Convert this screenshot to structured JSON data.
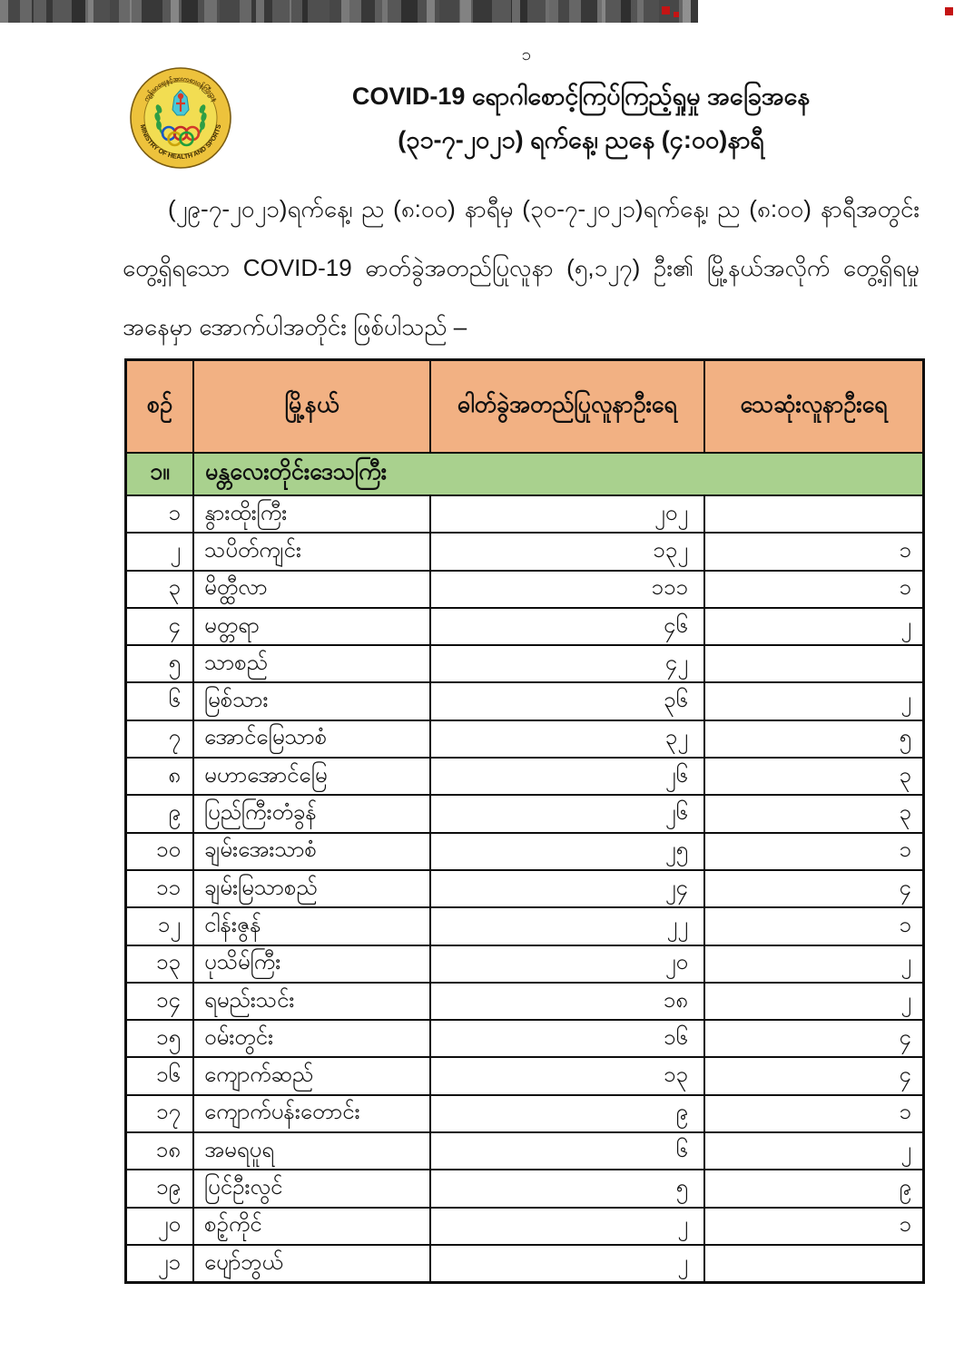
{
  "page": {
    "page_number": "၁"
  },
  "header": {
    "title_line1": "COVID-19 ရောဂါစောင့်ကြပ်ကြည့်ရှုမှု အခြေအနေ",
    "title_line2": "(၃၁-၇-၂၀၂၁) ရက်နေ့၊ ညနေ (၄:၀၀)နာရီ",
    "logo": {
      "text_top": "ကျန်းမာရေးနှင့်အားကစားဝန်ကြီးဌာန",
      "text_bottom": "MINISTRY OF HEALTH AND SPORTS"
    }
  },
  "intro": {
    "line1": "(၂၉-၇-၂၀၂၁)ရက်နေ့၊ ည (၈:၀၀) နာရီမှ (၃၀-၇-၂၀၂၁)ရက်နေ့၊ ည (၈:၀၀) နာရီအတွင်း",
    "line2": "တွေ့ရှိရသော COVID-19 ဓာတ်ခွဲအတည်ပြုလူနာ (၅,၁၂၇) ဦး၏ မြို့နယ်အလိုက် တွေ့ရှိရမှု အခြေ",
    "line3": "အနေမှာ အောက်ပါအတိုင်း ဖြစ်ပါသည် –"
  },
  "table": {
    "columns": [
      "စဉ်",
      "မြို့နယ်",
      "ဓါတ်ခွဲအတည်ပြုလူနာဦးရေ",
      "သေဆုံးလူနာဦးရေ"
    ],
    "region_row": {
      "no": "၁။",
      "name": "မန္တလေးတိုင်းဒေသကြီး"
    },
    "rows": [
      {
        "no": "၁",
        "township": "နွားထိုးကြီး",
        "confirmed": "၂၀၂",
        "deaths": ""
      },
      {
        "no": "၂",
        "township": "သပိတ်ကျင်း",
        "confirmed": "၁၃၂",
        "deaths": "၁"
      },
      {
        "no": "၃",
        "township": "မိတ္ထီလာ",
        "confirmed": "၁၁၁",
        "deaths": "၁"
      },
      {
        "no": "၄",
        "township": "မတ္တရာ",
        "confirmed": "၄၆",
        "deaths": "၂"
      },
      {
        "no": "၅",
        "township": "သာစည်",
        "confirmed": "၄၂",
        "deaths": ""
      },
      {
        "no": "၆",
        "township": "မြစ်သား",
        "confirmed": "၃၆",
        "deaths": "၂"
      },
      {
        "no": "၇",
        "township": "အောင်မြေသာစံ",
        "confirmed": "၃၂",
        "deaths": "၅"
      },
      {
        "no": "၈",
        "township": "မဟာအောင်မြေ",
        "confirmed": "၂၆",
        "deaths": "၃"
      },
      {
        "no": "၉",
        "township": "ပြည်ကြီးတံခွန်",
        "confirmed": "၂၆",
        "deaths": "၃"
      },
      {
        "no": "၁၀",
        "township": "ချမ်းအေးသာစံ",
        "confirmed": "၂၅",
        "deaths": "၁"
      },
      {
        "no": "၁၁",
        "township": "ချမ်းမြသာစည်",
        "confirmed": "၂၄",
        "deaths": "၄"
      },
      {
        "no": "၁၂",
        "township": "ငါန်းဇွန်",
        "confirmed": "၂၂",
        "deaths": "၁"
      },
      {
        "no": "၁၃",
        "township": "ပုသိမ်ကြီး",
        "confirmed": "၂၀",
        "deaths": "၂"
      },
      {
        "no": "၁၄",
        "township": "ရမည်းသင်း",
        "confirmed": "၁၈",
        "deaths": "၂"
      },
      {
        "no": "၁၅",
        "township": "ဝမ်းတွင်း",
        "confirmed": "၁၆",
        "deaths": "၄"
      },
      {
        "no": "၁၆",
        "township": "ကျောက်ဆည်",
        "confirmed": "၁၃",
        "deaths": "၄"
      },
      {
        "no": "၁၇",
        "township": "ကျောက်ပန်းတောင်း",
        "confirmed": "၉",
        "deaths": "၁"
      },
      {
        "no": "၁၈",
        "township": "အမရပူရ",
        "confirmed": "၆",
        "deaths": "၂"
      },
      {
        "no": "၁၉",
        "township": "ပြင်ဦးလွင်",
        "confirmed": "၅",
        "deaths": "၉"
      },
      {
        "no": "၂၀",
        "township": "စဉ့်ကိုင်",
        "confirmed": "၂",
        "deaths": "၁"
      },
      {
        "no": "၂၁",
        "township": "ပျော်ဘွယ်",
        "confirmed": "၂",
        "deaths": ""
      }
    ]
  },
  "colors": {
    "table_header_bg": "#F2B183",
    "region_row_bg": "#A9D18E",
    "table_border": "#0D0D0D",
    "logo_gold": "#EDC23C",
    "artifact_red": "#C41414"
  }
}
